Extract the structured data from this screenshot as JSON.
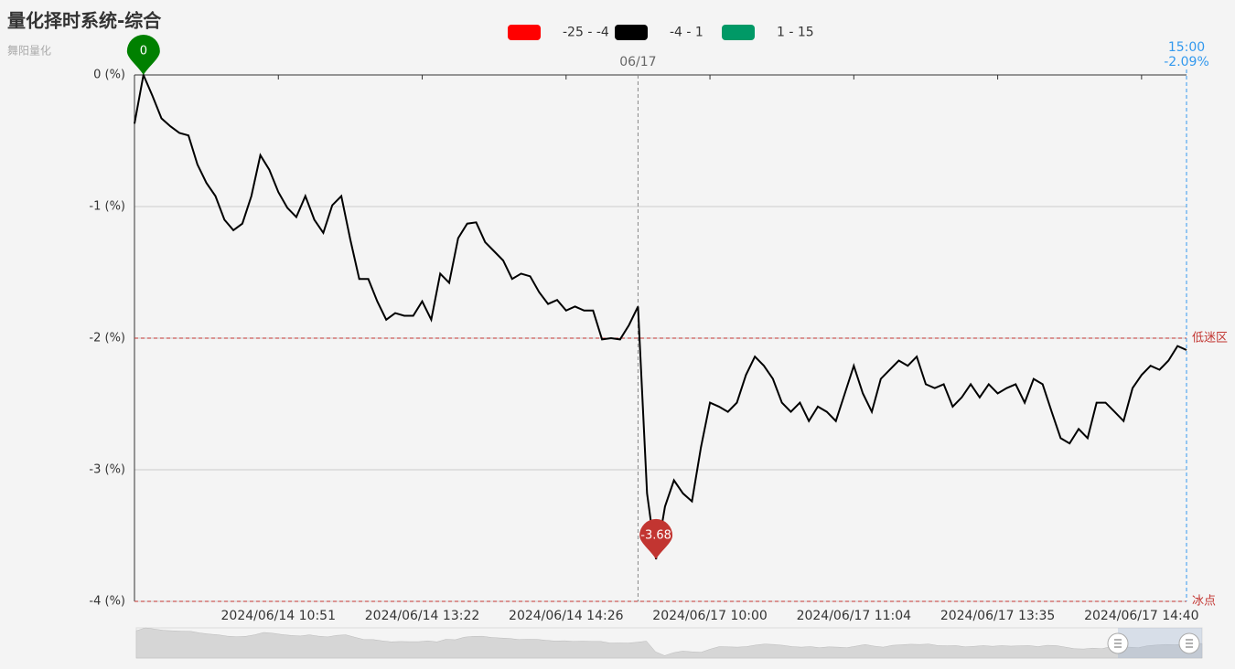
{
  "chart_data": {
    "type": "line",
    "title": "量化择时系统-综合",
    "subtitle": "舞阳量化",
    "categories": [
      null,
      null,
      null,
      null,
      null,
      null,
      null,
      null,
      null,
      null,
      null,
      null,
      null,
      null,
      null,
      null,
      "2024/06/14 10:51",
      null,
      null,
      null,
      null,
      null,
      null,
      null,
      null,
      null,
      null,
      null,
      null,
      null,
      null,
      null,
      "2024/06/14 13:22",
      null,
      null,
      null,
      null,
      null,
      null,
      null,
      null,
      null,
      null,
      null,
      null,
      null,
      null,
      null,
      "2024/06/14 14:26",
      null,
      null,
      null,
      null,
      null,
      null,
      null,
      null,
      null,
      null,
      null,
      null,
      null,
      null,
      null,
      "2024/06/17 10:00",
      null,
      null,
      null,
      null,
      null,
      null,
      null,
      null,
      null,
      null,
      null,
      null,
      null,
      null,
      null,
      "2024/06/17 11:04",
      null,
      null,
      null,
      null,
      null,
      null,
      null,
      null,
      null,
      null,
      null,
      null,
      null,
      null,
      null,
      "2024/06/17 13:35",
      null,
      null,
      null,
      null,
      null,
      null,
      null,
      null,
      null,
      null,
      null,
      null,
      null,
      null,
      null,
      "2024/06/17 14:40",
      null,
      null,
      null,
      null,
      null
    ],
    "series": [
      {
        "name": "综合",
        "values": [
          -0.37,
          0,
          -0.16,
          -0.33,
          -0.39,
          -0.44,
          -0.46,
          -0.68,
          -0.82,
          -0.92,
          -1.1,
          -1.18,
          -1.13,
          -0.92,
          -0.61,
          -0.72,
          -0.89,
          -1.01,
          -1.08,
          -0.92,
          -1.1,
          -1.2,
          -0.99,
          -0.92,
          -1.25,
          -1.55,
          -1.55,
          -1.72,
          -1.86,
          -1.81,
          -1.83,
          -1.83,
          -1.72,
          -1.86,
          -1.51,
          -1.58,
          -1.24,
          -1.13,
          -1.12,
          -1.27,
          -1.34,
          -1.41,
          -1.55,
          -1.51,
          -1.53,
          -1.65,
          -1.74,
          -1.71,
          -1.79,
          -1.76,
          -1.79,
          -1.79,
          -2.01,
          -2.0,
          -2.01,
          -1.9,
          -1.76,
          -3.18,
          -3.68,
          -3.28,
          -3.08,
          -3.18,
          -3.24,
          -2.83,
          -2.49,
          -2.52,
          -2.56,
          -2.49,
          -2.28,
          -2.14,
          -2.21,
          -2.31,
          -2.49,
          -2.56,
          -2.49,
          -2.63,
          -2.52,
          -2.56,
          -2.63,
          -2.42,
          -2.21,
          -2.42,
          -2.56,
          -2.31,
          -2.24,
          -2.17,
          -2.21,
          -2.14,
          -2.35,
          -2.38,
          -2.35,
          -2.52,
          -2.45,
          -2.35,
          -2.45,
          -2.35,
          -2.42,
          -2.38,
          -2.35,
          -2.49,
          -2.31,
          -2.35,
          -2.56,
          -2.76,
          -2.8,
          -2.69,
          -2.76,
          -2.49,
          -2.49,
          -2.56,
          -2.63,
          -2.38,
          -2.28,
          -2.21,
          -2.24,
          -2.17,
          -2.06,
          -2.09
        ]
      }
    ],
    "pieces": [
      {
        "label": "-25 - -4",
        "min": -25,
        "max": -4,
        "color": "#ff0000"
      },
      {
        "label": "-4 - 1",
        "min": -4,
        "max": 1,
        "color": "#000000"
      },
      {
        "label": "1 - 15",
        "min": 1,
        "max": 15,
        "color": "#009966"
      }
    ],
    "mark_lines": [
      {
        "value": -2,
        "label": "低迷区"
      },
      {
        "value": -4,
        "label": "冰点"
      }
    ],
    "mark_line_color": "#c23531",
    "max_color": "#008000",
    "min_color": "#c23531",
    "day_divider": {
      "index": 56,
      "label": "06/17"
    },
    "axis_pointer": {
      "x_label": "15:00",
      "value": -2.09,
      "label": "-2.09%"
    },
    "ylim": [
      -4,
      0
    ],
    "yticks": [
      {
        "value": -4,
        "label": "-4 (%)"
      },
      {
        "value": -3,
        "label": "-3 (%)"
      },
      {
        "value": -2,
        "label": "-2 (%)"
      },
      {
        "value": -1,
        "label": "-1 (%)"
      },
      {
        "value": 0,
        "label": "0 (%)"
      }
    ],
    "grid": true
  }
}
